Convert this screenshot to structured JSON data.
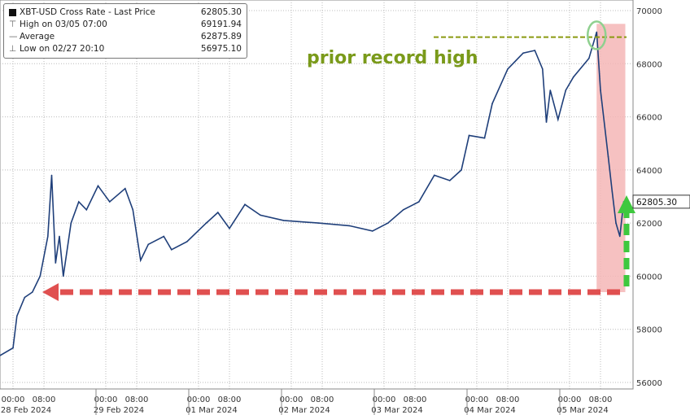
{
  "legend": {
    "title": "XBT-USD Cross Rate - Last Price",
    "title_value": "62805.30",
    "high_label": "High on 03/05 07:00",
    "high_value": "69191.94",
    "avg_label": "Average",
    "avg_value": "62875.89",
    "low_label": "Low on 02/27 20:10",
    "low_value": "56975.10"
  },
  "annotation": {
    "text": "prior record high",
    "color": "#7a9a1a",
    "shade_color": "#f4b6b6",
    "arrow_down_color": "#e05050",
    "arrow_up_color": "#3ec83e"
  },
  "last_price_label": "62805.30",
  "chart_data": {
    "type": "line",
    "series": [
      {
        "name": "XBT-USD Cross Rate - Last Price",
        "color": "#1f3f7a",
        "points": [
          [
            "2024-02-27 20:10",
            56975
          ],
          [
            "2024-02-28 00:00",
            57300
          ],
          [
            "2024-02-28 01:00",
            58500
          ],
          [
            "2024-02-28 03:00",
            59200
          ],
          [
            "2024-02-28 05:00",
            59400
          ],
          [
            "2024-02-28 07:00",
            60000
          ],
          [
            "2024-02-28 09:00",
            61500
          ],
          [
            "2024-02-28 10:00",
            63800
          ],
          [
            "2024-02-28 11:00",
            60500
          ],
          [
            "2024-02-28 12:00",
            61500
          ],
          [
            "2024-02-28 13:00",
            60000
          ],
          [
            "2024-02-28 15:00",
            62000
          ],
          [
            "2024-02-28 17:00",
            62800
          ],
          [
            "2024-02-28 19:00",
            62500
          ],
          [
            "2024-02-28 22:00",
            63400
          ],
          [
            "2024-02-29 01:00",
            62800
          ],
          [
            "2024-02-29 05:00",
            63300
          ],
          [
            "2024-02-29 07:00",
            62500
          ],
          [
            "2024-02-29 09:00",
            60600
          ],
          [
            "2024-02-29 11:00",
            61200
          ],
          [
            "2024-02-29 15:00",
            61500
          ],
          [
            "2024-02-29 17:00",
            61000
          ],
          [
            "2024-02-29 21:00",
            61300
          ],
          [
            "2024-03-01 02:00",
            62000
          ],
          [
            "2024-03-01 05:00",
            62400
          ],
          [
            "2024-03-01 08:00",
            61800
          ],
          [
            "2024-03-01 12:00",
            62700
          ],
          [
            "2024-03-01 16:00",
            62300
          ],
          [
            "2024-03-01 22:00",
            62100
          ],
          [
            "2024-03-02 07:00",
            62000
          ],
          [
            "2024-03-02 15:00",
            61900
          ],
          [
            "2024-03-02 21:00",
            61700
          ],
          [
            "2024-03-03 01:00",
            62000
          ],
          [
            "2024-03-03 05:00",
            62500
          ],
          [
            "2024-03-03 09:00",
            62800
          ],
          [
            "2024-03-03 13:00",
            63800
          ],
          [
            "2024-03-03 17:00",
            63600
          ],
          [
            "2024-03-03 20:00",
            64000
          ],
          [
            "2024-03-03 22:00",
            65300
          ],
          [
            "2024-03-04 02:00",
            65200
          ],
          [
            "2024-03-04 04:00",
            66500
          ],
          [
            "2024-03-04 08:00",
            67800
          ],
          [
            "2024-03-04 12:00",
            68400
          ],
          [
            "2024-03-04 15:00",
            68500
          ],
          [
            "2024-03-04 17:00",
            67800
          ],
          [
            "2024-03-04 18:00",
            65800
          ],
          [
            "2024-03-04 19:00",
            67000
          ],
          [
            "2024-03-04 21:00",
            65900
          ],
          [
            "2024-03-04 23:00",
            67000
          ],
          [
            "2024-03-05 01:00",
            67500
          ],
          [
            "2024-03-05 05:00",
            68200
          ],
          [
            "2024-03-05 07:00",
            69192
          ],
          [
            "2024-03-05 08:00",
            67000
          ],
          [
            "2024-03-05 10:00",
            64500
          ],
          [
            "2024-03-05 11:00",
            63200
          ],
          [
            "2024-03-05 12:00",
            62000
          ],
          [
            "2024-03-05 13:00",
            61500
          ],
          [
            "2024-03-05 14:00",
            62805
          ]
        ]
      }
    ],
    "prior_record_high": 69000,
    "support_level": 59400,
    "ylim": [
      56000,
      70000
    ],
    "yticks": [
      56000,
      58000,
      60000,
      62000,
      64000,
      66000,
      68000,
      70000
    ],
    "xticks": [
      {
        "time": "00:00",
        "date": "28 Feb 2024"
      },
      {
        "time": "08:00",
        "date": ""
      },
      {
        "time": "00:00",
        "date": "29 Feb 2024"
      },
      {
        "time": "08:00",
        "date": ""
      },
      {
        "time": "00:00",
        "date": "01 Mar 2024"
      },
      {
        "time": "08:00",
        "date": ""
      },
      {
        "time": "00:00",
        "date": "02 Mar 2024"
      },
      {
        "time": "08:00",
        "date": ""
      },
      {
        "time": "00:00",
        "date": "03 Mar 2024"
      },
      {
        "time": "08:00",
        "date": ""
      },
      {
        "time": "00:00",
        "date": "04 Mar 2024"
      },
      {
        "time": "08:00",
        "date": ""
      },
      {
        "time": "00:00",
        "date": "05 Mar 2024"
      },
      {
        "time": "08:00",
        "date": ""
      }
    ],
    "grid": true,
    "legend_position": "top-left"
  }
}
